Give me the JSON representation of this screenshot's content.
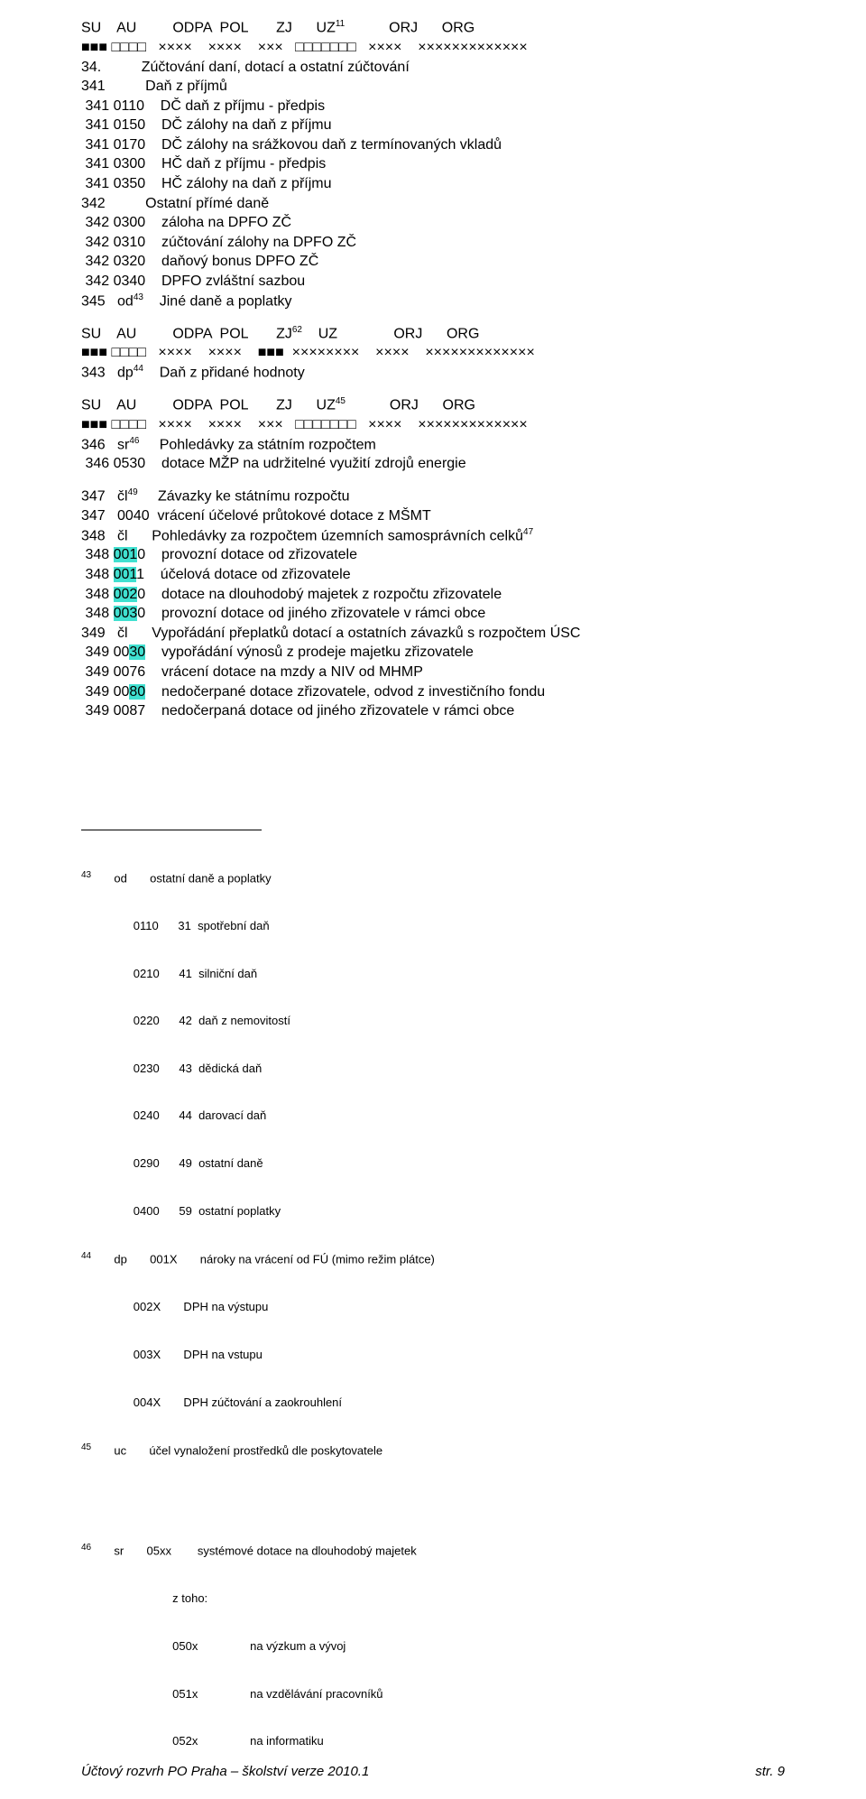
{
  "header1": {
    "labels": "SU    AU         ODPA  POL       ZJ      UZ",
    "sup": "11",
    "labels2": "           ORJ      ORG",
    "pattern": "■■■ □□□□   ××××    ××××    ×××   □□□□□□□   ××××    ×××××××××××××"
  },
  "block34": {
    "l1": "34.          Zúčtování daní, dotací a ostatní zúčtování",
    "l2": "341          Daň z příjmů",
    "l3": " 341 0110    DČ daň z příjmu - předpis",
    "l4": " 341 0150    DČ zálohy na daň z příjmu",
    "l5": " 341 0170    DČ zálohy na srážkovou daň z termínovaných vkladů",
    "l6": " 341 0300    HČ daň z příjmu - předpis",
    "l7": " 341 0350    HČ zálohy na daň z příjmu",
    "l8": "342          Ostatní přímé daně",
    "l9": " 342 0300    záloha na DPFO ZČ",
    "l10": " 342 0310    zúčtování zálohy na DPFO ZČ",
    "l11": " 342 0320    daňový bonus DPFO ZČ",
    "l12": " 342 0340    DPFO zvláštní sazbou",
    "l13a": "345   od",
    "l13sup": "43",
    "l13b": "    Jiné daně a poplatky"
  },
  "header2": {
    "labels": "SU    AU         ODPA  POL       ZJ",
    "sup": "62",
    "labels2": "    UZ              ORJ      ORG",
    "pattern": "■■■ □□□□   ××××    ××××    ■■■  ××××××××    ××××    ×××××××××××××"
  },
  "block343": {
    "a": "343   dp",
    "sup": "44",
    "b": "    Daň z přidané hodnoty"
  },
  "header3": {
    "labels": "SU    AU         ODPA  POL       ZJ      UZ",
    "sup": "45",
    "labels2": "           ORJ      ORG",
    "pattern": "■■■ □□□□   ××××    ××××    ×××   □□□□□□□   ××××    ×××××××××××××"
  },
  "block346": {
    "a": "346   sr",
    "sup": "46",
    "b": "     Pohledávky za státním rozpočtem",
    "l2": " 346 0530    dotace MŽP na udržitelné využití zdrojů energie"
  },
  "block347": {
    "a": "347   čl",
    "sup": "49",
    "b": "     Závazky ke státnímu rozpočtu",
    "l2": "347   0040  vrácení účelové průtokové dotace z MŠMT",
    "l3a": "348   čl      Pohledávky za rozpočtem územních samosprávních celků",
    "l3sup": "47",
    "r1a": " 348 ",
    "r1h": "001",
    "r1b": "0    provozní dotace od zřizovatele",
    "r2a": " 348 ",
    "r2h": "001",
    "r2b": "1    účelová dotace od zřizovatele",
    "r3a": " 348 ",
    "r3h": "002",
    "r3b": "0    dotace na dlouhodobý majetek z rozpočtu zřizovatele",
    "r4a": " 348 ",
    "r4h": "003",
    "r4b": "0    provozní dotace od jiného zřizovatele v rámci obce",
    "l349": "349   čl      Vypořádání přeplatků dotací a ostatních závazků s rozpočtem ÚSC",
    "r5a": " 349 00",
    "r5h": "30",
    "r5b": "    vypořádání výnosů z prodeje majetku zřizovatele",
    "r6": " 349 0076    vrácení dotace na mzdy a NIV od MHMP",
    "r7a": " 349 00",
    "r7h": "80",
    "r7b": "    nedočerpané dotace zřizovatele, odvod z investičního fondu",
    "r8": " 349 0087    nedočerpaná dotace od jiného zřizovatele v rámci obce"
  },
  "footnotes": {
    "n43": "43",
    "n44": "44",
    "n45": "45",
    "n46": "46",
    "f43_1": "       od       ostatní daně a poplatky",
    "f43_2": "                0110      31  spotřební daň",
    "f43_3": "                0210      41  silniční daň",
    "f43_4": "                0220      42  daň z nemovitostí",
    "f43_5": "                0230      43  dědická daň",
    "f43_6": "                0240      44  darovací daň",
    "f43_7": "                0290      49  ostatní daně",
    "f43_8": "                0400      59  ostatní poplatky",
    "f44_1": "       dp       001X       nároky na vrácení od FÚ (mimo režim plátce)",
    "f44_2": "                002X       DPH na výstupu",
    "f44_3": "                003X       DPH na vstupu",
    "f44_4": "                004X       DPH zúčtování a zaokrouhlení",
    "f45_1": "       uc       účel vynaložení prostředků dle poskytovatele",
    "f46_1": "       sr       05xx        systémové dotace na dlouhodobý majetek",
    "f46_2": "                            z toho:",
    "f46_3": "                            050x                na výzkum a vývoj",
    "f46_4": "                            051x                na vzdělávání pracovníků",
    "f46_5": "                            052x                na informatiku"
  },
  "footer": {
    "left": "Účtový rozvrh PO Praha – školství  verze 2010.1",
    "right": "str. 9"
  }
}
